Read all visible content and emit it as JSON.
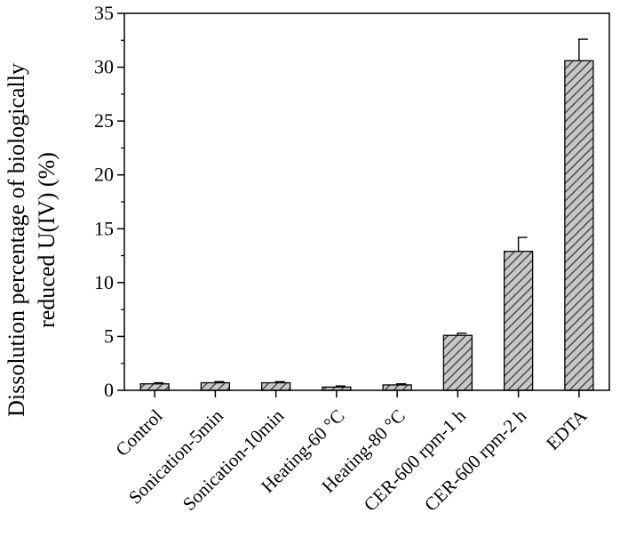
{
  "chart_data": {
    "type": "bar",
    "title": "",
    "xlabel": "",
    "ylabel_lines": [
      "Dissolution percentage of biologically",
      "reduced U(IV) (%)"
    ],
    "categories": [
      "Control",
      "Sonication-5min",
      "Sonication-10min",
      "Heating-60 °C",
      "Heating-80 °C",
      "CER-600 rpm-1 h",
      "CER-600 rpm-2 h",
      "EDTA"
    ],
    "values": [
      0.6,
      0.7,
      0.7,
      0.3,
      0.5,
      5.1,
      12.9,
      30.6
    ],
    "errors": [
      0.1,
      0.1,
      0.1,
      0.1,
      0.1,
      0.2,
      1.3,
      2.0
    ],
    "ylim": [
      0,
      35
    ],
    "yticks": [
      0,
      5,
      10,
      15,
      20,
      25,
      30,
      35
    ],
    "bar_fill": "hatched",
    "bar_color": "#a6a6a6",
    "grid": false
  }
}
